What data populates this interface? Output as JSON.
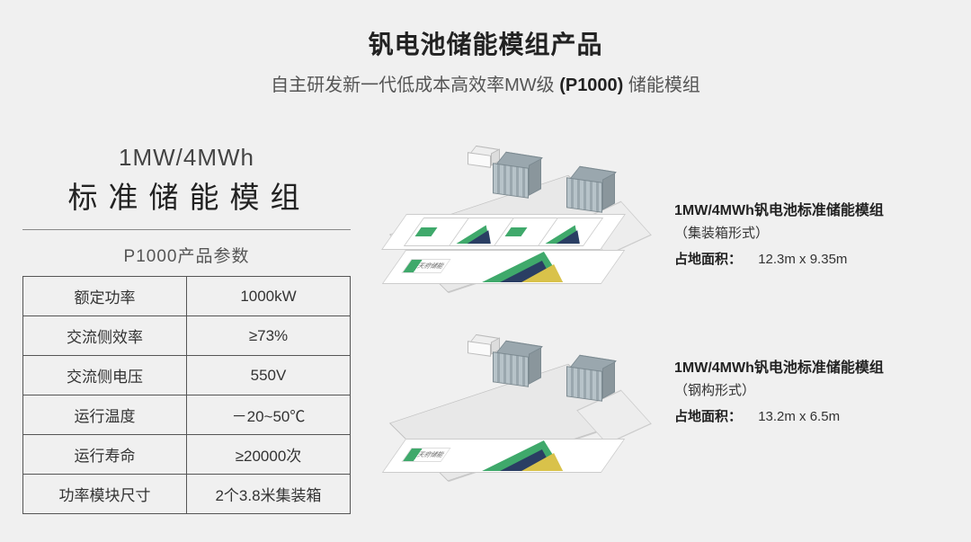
{
  "header": {
    "title": "钒电池储能模组产品",
    "subtitle_pre": "自主研发新一代低成本高效率MW级",
    "subtitle_bold": "(P1000)",
    "subtitle_post": "储能模组"
  },
  "left": {
    "cap1": "1MW/4MWh",
    "cap2": "标准储能模组",
    "table_caption": "P1000产品参数",
    "rows": [
      {
        "k": "额定功率",
        "v": "1000kW"
      },
      {
        "k": "交流侧效率",
        "v": "≥73%"
      },
      {
        "k": "交流侧电压",
        "v": "550V"
      },
      {
        "k": "运行温度",
        "v": "－20~50℃"
      },
      {
        "k": "运行寿命",
        "v": "≥20000次"
      },
      {
        "k": "功率模块尺寸",
        "v": "2个3.8米集装箱"
      }
    ]
  },
  "diagrams": {
    "colors": {
      "platform_top": "#e8e8e8",
      "platform_front": "#ffffff",
      "platform_side": "#ededed",
      "container_front": "#9aa7ae",
      "container_side": "#8a969c",
      "triangle_green": "#3fa96b",
      "triangle_dark": "#2a3e63",
      "triangle_yellow": "#d9c24a"
    },
    "variant1": {
      "title": "1MW/4MWh钒电池标准储能模组",
      "form": "（集装箱形式）",
      "area_label": "占地面积：",
      "area_value": "12.3m x 9.35m"
    },
    "variant2": {
      "title": "1MW/4MWh钒电池标准储能模组",
      "form": "（钢构形式）",
      "area_label": "占地面积：",
      "area_value": "13.2m x 6.5m"
    },
    "logo_text": "天府储能"
  }
}
